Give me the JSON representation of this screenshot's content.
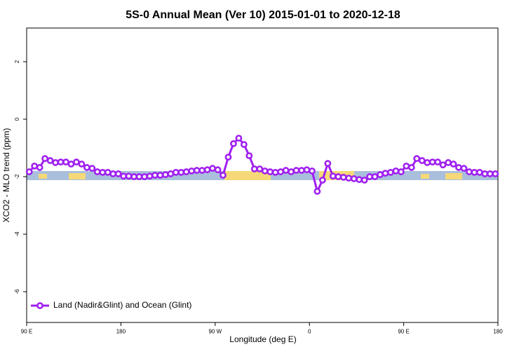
{
  "chart_data": {
    "type": "line",
    "title": "5S-0 Annual Mean (Ver 10)   2015-01-01 to 2020-12-18",
    "x_label": "Longitude (deg E)",
    "y_label": "XCO2 - MLO trend (ppm)",
    "x": [
      92.5,
      97.5,
      102.5,
      107.5,
      112.5,
      117.5,
      122.5,
      127.5,
      132.5,
      137.5,
      142.5,
      147.5,
      152.5,
      157.5,
      162.5,
      167.5,
      172.5,
      177.5,
      182.5,
      187.5,
      192.5,
      197.5,
      202.5,
      207.5,
      212.5,
      217.5,
      222.5,
      227.5,
      232.5,
      237.5,
      242.5,
      247.5,
      252.5,
      257.5,
      262.5,
      267.5,
      272.5,
      277.5,
      282.5,
      287.5,
      292.5,
      297.5,
      302.5,
      307.5,
      312.5,
      317.5,
      322.5,
      327.5,
      332.5,
      337.5,
      342.5,
      347.5,
      352.5,
      357.5,
      362.5,
      367.5,
      372.5,
      377.5,
      382.5,
      387.5,
      392.5,
      397.5,
      402.5,
      407.5,
      412.5,
      417.5,
      422.5,
      427.5,
      432.5,
      437.5,
      442.5,
      447.5,
      452.5,
      457.5,
      462.5,
      467.5,
      472.5,
      477.5,
      482.5,
      487.5,
      492.5,
      497.5,
      502.5,
      507.5,
      512.5,
      517.5,
      522.5,
      527.5,
      532.5,
      537.5
    ],
    "series": [
      {
        "name": "Land (Nadir&Glint) and Ocean (Glint)",
        "color": "#a020f0",
        "values": [
          -1.83,
          -1.63,
          -1.68,
          -1.37,
          -1.44,
          -1.51,
          -1.49,
          -1.49,
          -1.56,
          -1.49,
          -1.56,
          -1.68,
          -1.71,
          -1.83,
          -1.85,
          -1.85,
          -1.9,
          -1.9,
          -1.98,
          -1.98,
          -2.0,
          -2.0,
          -2.0,
          -1.98,
          -1.95,
          -1.95,
          -1.93,
          -1.9,
          -1.85,
          -1.85,
          -1.83,
          -1.8,
          -1.78,
          -1.78,
          -1.76,
          -1.71,
          -1.76,
          -1.95,
          -1.32,
          -0.85,
          -0.66,
          -0.88,
          -1.27,
          -1.73,
          -1.73,
          -1.8,
          -1.83,
          -1.85,
          -1.83,
          -1.78,
          -1.83,
          -1.78,
          -1.78,
          -1.76,
          -1.8,
          -2.51,
          -2.12,
          -1.54,
          -1.98,
          -2.0,
          -2.02,
          -2.05,
          -2.07,
          -2.1,
          -2.12,
          -2.0,
          -2.0,
          -1.93,
          -1.88,
          -1.85,
          -1.8,
          -1.83,
          -1.63,
          -1.68,
          -1.37,
          -1.44,
          -1.51,
          -1.49,
          -1.49,
          -1.59,
          -1.51,
          -1.56,
          -1.68,
          -1.71,
          -1.83,
          -1.85,
          -1.85,
          -1.9,
          -1.9,
          -1.9
        ]
      }
    ],
    "xlim": [
      90,
      540
    ],
    "xticks": [
      {
        "value": 90,
        "label": "90 E"
      },
      {
        "value": 180,
        "label": "180"
      },
      {
        "value": 270,
        "label": "90 W"
      },
      {
        "value": 360,
        "label": "0"
      },
      {
        "value": 450,
        "label": "90 E"
      },
      {
        "value": 540,
        "label": "180"
      }
    ],
    "ylim": [
      -7.07,
      3.17
    ],
    "yticks": [
      2,
      0,
      -2,
      -4,
      -6
    ],
    "legend": "bottom-left"
  }
}
